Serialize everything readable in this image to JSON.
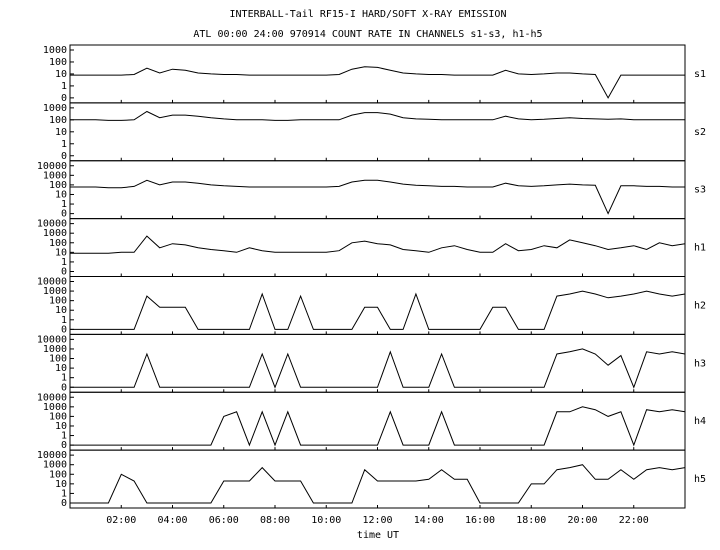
{
  "chart_data": {
    "type": "line",
    "title": "INTERBALL-Tail RF15-I HARD/SOFT X-RAY EMISSION",
    "subtitle": "ATL 00:00 24:00 970914  COUNT RATE IN CHANNELS s1-s3, h1-h5",
    "x_label": "time UT",
    "xlim": [
      0,
      24
    ],
    "xticks": [
      {
        "value": 2,
        "label": "02:00"
      },
      {
        "value": 4,
        "label": "04:00"
      },
      {
        "value": 6,
        "label": "06:00"
      },
      {
        "value": 8,
        "label": "08:00"
      },
      {
        "value": 10,
        "label": "10:00"
      },
      {
        "value": 12,
        "label": "12:00"
      },
      {
        "value": 14,
        "label": "14:00"
      },
      {
        "value": 16,
        "label": "16:00"
      },
      {
        "value": 18,
        "label": "18:00"
      },
      {
        "value": 20,
        "label": "20:00"
      },
      {
        "value": 22,
        "label": "22:00"
      }
    ],
    "yscale": "log",
    "x": [
      0,
      0.5,
      1,
      1.5,
      2,
      2.5,
      3,
      3.5,
      4,
      4.5,
      5,
      5.5,
      6,
      6.5,
      7,
      7.5,
      8,
      8.5,
      9,
      9.5,
      10,
      10.5,
      11,
      11.5,
      12,
      12.5,
      13,
      13.5,
      14,
      14.5,
      15,
      15.5,
      16,
      16.5,
      17,
      17.5,
      18,
      18.5,
      19,
      19.5,
      20,
      20.5,
      21,
      21.5,
      22,
      22.5,
      23,
      23.5,
      24
    ],
    "series": [
      {
        "name": "s1",
        "color": "#000000",
        "ylim": [
          0,
          1000
        ],
        "yticks": [
          0,
          1,
          10,
          100,
          1000
        ],
        "values": [
          8,
          8,
          8,
          8,
          8,
          9,
          30,
          12,
          25,
          20,
          12,
          10,
          9,
          9,
          8,
          8,
          8,
          8,
          8,
          8,
          8,
          9,
          25,
          40,
          35,
          20,
          12,
          10,
          9,
          9,
          8,
          8,
          8,
          8,
          20,
          10,
          9,
          10,
          12,
          12,
          10,
          9,
          0,
          8,
          8,
          8,
          8,
          8,
          8
        ]
      },
      {
        "name": "s2",
        "color": "#000000",
        "ylim": [
          0,
          1000
        ],
        "yticks": [
          0,
          1,
          10,
          100,
          1000
        ],
        "values": [
          100,
          100,
          100,
          90,
          90,
          100,
          500,
          150,
          250,
          250,
          200,
          150,
          120,
          100,
          100,
          100,
          90,
          90,
          100,
          100,
          100,
          100,
          250,
          400,
          400,
          300,
          150,
          120,
          110,
          100,
          100,
          100,
          100,
          100,
          200,
          120,
          100,
          110,
          130,
          150,
          130,
          120,
          110,
          120,
          100,
          100,
          100,
          100,
          100
        ]
      },
      {
        "name": "s3",
        "color": "#000000",
        "ylim": [
          0,
          10000
        ],
        "yticks": [
          0,
          1,
          10,
          100,
          1000,
          10000
        ],
        "values": [
          60,
          60,
          60,
          50,
          50,
          70,
          300,
          100,
          200,
          200,
          150,
          100,
          80,
          70,
          60,
          60,
          60,
          60,
          60,
          60,
          60,
          70,
          200,
          300,
          300,
          200,
          120,
          90,
          80,
          70,
          70,
          60,
          60,
          60,
          150,
          80,
          70,
          80,
          100,
          120,
          100,
          90,
          0,
          80,
          80,
          70,
          70,
          60,
          60
        ]
      },
      {
        "name": "h1",
        "color": "#000000",
        "ylim": [
          0,
          10000
        ],
        "yticks": [
          0,
          1,
          10,
          100,
          1000,
          10000
        ],
        "values": [
          8,
          8,
          8,
          8,
          10,
          10,
          500,
          30,
          80,
          60,
          30,
          20,
          15,
          10,
          30,
          15,
          10,
          10,
          10,
          10,
          10,
          15,
          100,
          150,
          80,
          60,
          20,
          15,
          10,
          30,
          50,
          20,
          10,
          10,
          80,
          15,
          20,
          50,
          30,
          200,
          100,
          50,
          20,
          30,
          50,
          20,
          100,
          50,
          80
        ]
      },
      {
        "name": "h2",
        "color": "#000000",
        "ylim": [
          0,
          10000
        ],
        "yticks": [
          0,
          1,
          10,
          100,
          1000,
          10000
        ],
        "values": [
          0,
          0,
          0,
          0,
          0,
          0,
          300,
          20,
          20,
          20,
          0,
          0,
          0,
          0,
          0,
          500,
          0,
          0,
          300,
          0,
          0,
          0,
          0,
          20,
          20,
          0,
          0,
          500,
          0,
          0,
          0,
          0,
          0,
          20,
          20,
          0,
          0,
          0,
          300,
          500,
          1000,
          500,
          200,
          300,
          500,
          1000,
          500,
          300,
          500
        ]
      },
      {
        "name": "h3",
        "color": "#000000",
        "ylim": [
          0,
          10000
        ],
        "yticks": [
          0,
          1,
          10,
          100,
          1000,
          10000
        ],
        "values": [
          0,
          0,
          0,
          0,
          0,
          0,
          300,
          0,
          0,
          0,
          0,
          0,
          0,
          0,
          0,
          300,
          0,
          300,
          0,
          0,
          0,
          0,
          0,
          0,
          0,
          500,
          0,
          0,
          0,
          300,
          0,
          0,
          0,
          0,
          0,
          0,
          0,
          0,
          300,
          500,
          1000,
          300,
          20,
          200,
          0,
          500,
          300,
          500,
          300
        ]
      },
      {
        "name": "h4",
        "color": "#000000",
        "ylim": [
          0,
          10000
        ],
        "yticks": [
          0,
          1,
          10,
          100,
          1000,
          10000
        ],
        "values": [
          0,
          0,
          0,
          0,
          0,
          0,
          0,
          0,
          0,
          0,
          0,
          0,
          100,
          300,
          0,
          300,
          0,
          300,
          0,
          0,
          0,
          0,
          0,
          0,
          0,
          300,
          0,
          0,
          0,
          300,
          0,
          0,
          0,
          0,
          0,
          0,
          0,
          0,
          300,
          300,
          1000,
          500,
          100,
          300,
          0,
          500,
          300,
          500,
          300
        ]
      },
      {
        "name": "h5",
        "color": "#000000",
        "ylim": [
          0,
          10000
        ],
        "yticks": [
          0,
          1,
          10,
          100,
          1000,
          10000
        ],
        "values": [
          0,
          0,
          0,
          0,
          100,
          20,
          0,
          0,
          0,
          0,
          0,
          0,
          20,
          20,
          20,
          500,
          20,
          20,
          20,
          0,
          0,
          0,
          0,
          300,
          20,
          20,
          20,
          20,
          30,
          300,
          30,
          30,
          0,
          0,
          0,
          0,
          10,
          10,
          300,
          500,
          1000,
          30,
          30,
          300,
          30,
          300,
          500,
          300,
          500
        ]
      }
    ]
  }
}
